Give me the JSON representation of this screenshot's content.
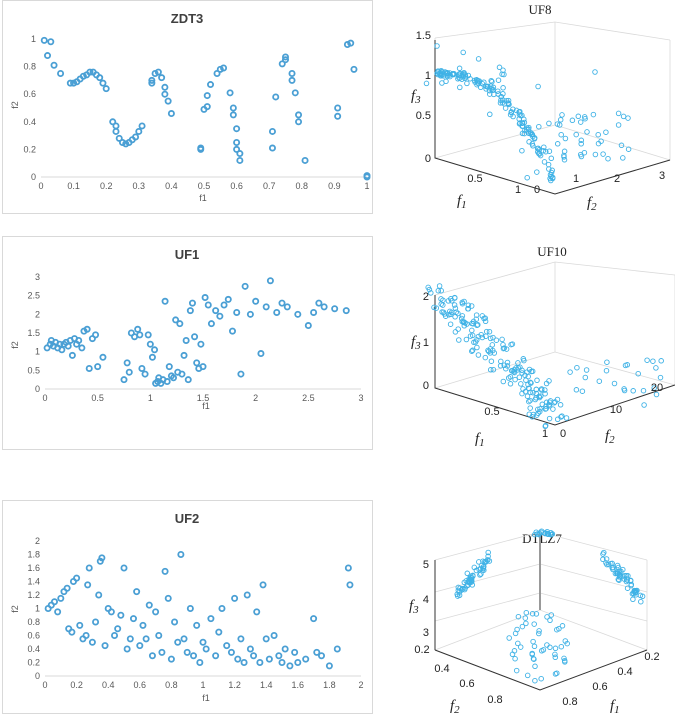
{
  "chart_data": [
    {
      "id": "zdt3",
      "type": "scatter",
      "title": "ZDT3",
      "xlabel": "f1",
      "ylabel": "f2",
      "xlim": [
        0,
        1
      ],
      "ylim": [
        0,
        1
      ],
      "xticks": [
        "0",
        "0.1",
        "0.2",
        "0.3",
        "0.4",
        "0.5",
        "0.6",
        "0.7",
        "0.8",
        "0.9",
        "1"
      ],
      "yticks": [
        "0",
        "0.2",
        "0.4",
        "0.6",
        "0.8",
        "1"
      ],
      "points": [
        [
          0.01,
          0.99
        ],
        [
          0.03,
          0.98
        ],
        [
          0.02,
          0.88
        ],
        [
          0.04,
          0.81
        ],
        [
          0.06,
          0.75
        ],
        [
          0.09,
          0.68
        ],
        [
          0.1,
          0.68
        ],
        [
          0.11,
          0.69
        ],
        [
          0.12,
          0.71
        ],
        [
          0.13,
          0.73
        ],
        [
          0.14,
          0.74
        ],
        [
          0.15,
          0.76
        ],
        [
          0.16,
          0.76
        ],
        [
          0.17,
          0.74
        ],
        [
          0.18,
          0.72
        ],
        [
          0.19,
          0.68
        ],
        [
          0.2,
          0.64
        ],
        [
          0.22,
          0.4
        ],
        [
          0.23,
          0.37
        ],
        [
          0.23,
          0.33
        ],
        [
          0.24,
          0.28
        ],
        [
          0.25,
          0.25
        ],
        [
          0.26,
          0.24
        ],
        [
          0.27,
          0.25
        ],
        [
          0.28,
          0.27
        ],
        [
          0.29,
          0.29
        ],
        [
          0.3,
          0.33
        ],
        [
          0.31,
          0.37
        ],
        [
          0.34,
          0.68
        ],
        [
          0.34,
          0.7
        ],
        [
          0.35,
          0.75
        ],
        [
          0.36,
          0.76
        ],
        [
          0.37,
          0.72
        ],
        [
          0.38,
          0.65
        ],
        [
          0.38,
          0.6
        ],
        [
          0.39,
          0.55
        ],
        [
          0.4,
          0.46
        ],
        [
          0.49,
          0.2
        ],
        [
          0.49,
          0.21
        ],
        [
          0.5,
          0.49
        ],
        [
          0.51,
          0.51
        ],
        [
          0.51,
          0.59
        ],
        [
          0.52,
          0.67
        ],
        [
          0.54,
          0.75
        ],
        [
          0.55,
          0.78
        ],
        [
          0.56,
          0.79
        ],
        [
          0.58,
          0.61
        ],
        [
          0.59,
          0.5
        ],
        [
          0.59,
          0.45
        ],
        [
          0.6,
          0.35
        ],
        [
          0.6,
          0.25
        ],
        [
          0.6,
          0.2
        ],
        [
          0.61,
          0.17
        ],
        [
          0.61,
          0.12
        ],
        [
          0.71,
          0.21
        ],
        [
          0.71,
          0.33
        ],
        [
          0.72,
          0.58
        ],
        [
          0.74,
          0.82
        ],
        [
          0.75,
          0.85
        ],
        [
          0.75,
          0.87
        ],
        [
          0.77,
          0.75
        ],
        [
          0.77,
          0.7
        ],
        [
          0.78,
          0.61
        ],
        [
          0.79,
          0.45
        ],
        [
          0.79,
          0.4
        ],
        [
          0.81,
          0.12
        ],
        [
          0.91,
          0.44
        ],
        [
          0.91,
          0.5
        ],
        [
          0.94,
          0.96
        ],
        [
          0.95,
          0.97
        ],
        [
          0.96,
          0.78
        ],
        [
          1.0,
          0.0
        ],
        [
          1.0,
          0.01
        ]
      ]
    },
    {
      "id": "uf1",
      "type": "scatter",
      "title": "UF1",
      "xlabel": "f1",
      "ylabel": "f2",
      "xlim": [
        0,
        3
      ],
      "ylim": [
        0,
        3
      ],
      "xticks": [
        "0",
        "0.5",
        "1",
        "1.5",
        "2",
        "2.5",
        "3"
      ],
      "yticks": [
        "0",
        "0.5",
        "1",
        "1.5",
        "2",
        "2.5",
        "3"
      ],
      "points": [
        [
          0.02,
          1.1
        ],
        [
          0.05,
          1.2
        ],
        [
          0.06,
          1.3
        ],
        [
          0.08,
          1.15
        ],
        [
          0.1,
          1.25
        ],
        [
          0.12,
          1.1
        ],
        [
          0.14,
          1.2
        ],
        [
          0.16,
          1.05
        ],
        [
          0.18,
          1.2
        ],
        [
          0.2,
          1.25
        ],
        [
          0.22,
          1.15
        ],
        [
          0.24,
          1.3
        ],
        [
          0.26,
          0.9
        ],
        [
          0.28,
          1.35
        ],
        [
          0.3,
          1.2
        ],
        [
          0.32,
          1.3
        ],
        [
          0.35,
          1.1
        ],
        [
          0.37,
          1.55
        ],
        [
          0.4,
          1.6
        ],
        [
          0.42,
          0.55
        ],
        [
          0.45,
          1.35
        ],
        [
          0.48,
          1.45
        ],
        [
          0.5,
          0.6
        ],
        [
          0.55,
          0.85
        ],
        [
          0.75,
          0.25
        ],
        [
          0.78,
          0.7
        ],
        [
          0.8,
          0.45
        ],
        [
          0.82,
          1.5
        ],
        [
          0.85,
          1.4
        ],
        [
          0.88,
          1.6
        ],
        [
          0.9,
          1.45
        ],
        [
          0.92,
          0.55
        ],
        [
          0.95,
          0.4
        ],
        [
          0.98,
          1.45
        ],
        [
          1.0,
          1.2
        ],
        [
          1.02,
          0.85
        ],
        [
          1.04,
          1.05
        ],
        [
          1.05,
          0.15
        ],
        [
          1.07,
          0.2
        ],
        [
          1.08,
          0.3
        ],
        [
          1.1,
          0.15
        ],
        [
          1.12,
          0.25
        ],
        [
          1.14,
          2.35
        ],
        [
          1.16,
          0.2
        ],
        [
          1.18,
          0.6
        ],
        [
          1.2,
          0.35
        ],
        [
          1.22,
          0.3
        ],
        [
          1.24,
          1.85
        ],
        [
          1.26,
          0.45
        ],
        [
          1.28,
          1.75
        ],
        [
          1.3,
          0.4
        ],
        [
          1.32,
          0.9
        ],
        [
          1.34,
          1.3
        ],
        [
          1.36,
          0.25
        ],
        [
          1.38,
          2.1
        ],
        [
          1.4,
          2.3
        ],
        [
          1.42,
          1.4
        ],
        [
          1.44,
          0.7
        ],
        [
          1.46,
          0.55
        ],
        [
          1.48,
          1.2
        ],
        [
          1.5,
          0.6
        ],
        [
          1.52,
          2.45
        ],
        [
          1.55,
          2.25
        ],
        [
          1.58,
          1.75
        ],
        [
          1.62,
          2.1
        ],
        [
          1.66,
          1.95
        ],
        [
          1.7,
          2.25
        ],
        [
          1.74,
          2.4
        ],
        [
          1.78,
          1.55
        ],
        [
          1.82,
          2.05
        ],
        [
          1.86,
          0.4
        ],
        [
          1.9,
          2.75
        ],
        [
          1.95,
          2.0
        ],
        [
          2.0,
          2.35
        ],
        [
          2.05,
          0.95
        ],
        [
          2.1,
          2.2
        ],
        [
          2.14,
          2.9
        ],
        [
          2.2,
          2.05
        ],
        [
          2.25,
          2.3
        ],
        [
          2.3,
          2.2
        ],
        [
          2.4,
          2.0
        ],
        [
          2.5,
          1.7
        ],
        [
          2.55,
          2.05
        ],
        [
          2.6,
          2.3
        ],
        [
          2.65,
          2.2
        ],
        [
          2.75,
          2.15
        ],
        [
          2.86,
          2.1
        ]
      ]
    },
    {
      "id": "uf2",
      "type": "scatter",
      "title": "UF2",
      "xlabel": "f1",
      "ylabel": "f2",
      "xlim": [
        0,
        2
      ],
      "ylim": [
        0,
        2
      ],
      "xticks": [
        "0",
        "0.2",
        "0.4",
        "0.6",
        "0.8",
        "1",
        "1.2",
        "1.4",
        "1.6",
        "1.8",
        "2"
      ],
      "yticks": [
        "0",
        "0.2",
        "0.4",
        "0.6",
        "0.8",
        "1",
        "1.2",
        "1.4",
        "1.6",
        "1.8",
        "2"
      ],
      "points": [
        [
          0.02,
          1.0
        ],
        [
          0.04,
          1.05
        ],
        [
          0.06,
          1.1
        ],
        [
          0.08,
          0.95
        ],
        [
          0.1,
          1.15
        ],
        [
          0.12,
          1.25
        ],
        [
          0.14,
          1.3
        ],
        [
          0.15,
          0.7
        ],
        [
          0.17,
          0.65
        ],
        [
          0.18,
          1.4
        ],
        [
          0.2,
          1.45
        ],
        [
          0.22,
          0.75
        ],
        [
          0.24,
          0.55
        ],
        [
          0.26,
          0.6
        ],
        [
          0.27,
          1.35
        ],
        [
          0.28,
          1.6
        ],
        [
          0.3,
          0.5
        ],
        [
          0.32,
          0.8
        ],
        [
          0.34,
          1.2
        ],
        [
          0.35,
          1.7
        ],
        [
          0.36,
          1.75
        ],
        [
          0.38,
          0.45
        ],
        [
          0.4,
          1.0
        ],
        [
          0.42,
          0.95
        ],
        [
          0.44,
          0.6
        ],
        [
          0.46,
          0.7
        ],
        [
          0.48,
          0.9
        ],
        [
          0.5,
          1.6
        ],
        [
          0.52,
          0.4
        ],
        [
          0.54,
          0.55
        ],
        [
          0.56,
          0.85
        ],
        [
          0.58,
          1.25
        ],
        [
          0.6,
          0.45
        ],
        [
          0.62,
          0.75
        ],
        [
          0.64,
          0.55
        ],
        [
          0.66,
          1.05
        ],
        [
          0.68,
          0.3
        ],
        [
          0.7,
          0.95
        ],
        [
          0.72,
          0.6
        ],
        [
          0.74,
          0.35
        ],
        [
          0.76,
          1.55
        ],
        [
          0.78,
          1.15
        ],
        [
          0.8,
          0.25
        ],
        [
          0.82,
          0.8
        ],
        [
          0.84,
          0.5
        ],
        [
          0.86,
          1.8
        ],
        [
          0.88,
          0.55
        ],
        [
          0.9,
          0.35
        ],
        [
          0.92,
          1.0
        ],
        [
          0.94,
          0.3
        ],
        [
          0.96,
          0.75
        ],
        [
          0.98,
          0.2
        ],
        [
          1.0,
          0.5
        ],
        [
          1.02,
          0.4
        ],
        [
          1.05,
          0.85
        ],
        [
          1.08,
          0.3
        ],
        [
          1.1,
          0.65
        ],
        [
          1.12,
          1.0
        ],
        [
          1.15,
          0.45
        ],
        [
          1.18,
          0.35
        ],
        [
          1.2,
          1.15
        ],
        [
          1.22,
          0.25
        ],
        [
          1.24,
          0.55
        ],
        [
          1.26,
          0.2
        ],
        [
          1.28,
          1.2
        ],
        [
          1.3,
          0.4
        ],
        [
          1.32,
          0.3
        ],
        [
          1.34,
          0.95
        ],
        [
          1.36,
          0.2
        ],
        [
          1.38,
          1.35
        ],
        [
          1.4,
          0.55
        ],
        [
          1.42,
          0.25
        ],
        [
          1.45,
          0.6
        ],
        [
          1.48,
          0.3
        ],
        [
          1.5,
          0.2
        ],
        [
          1.52,
          0.4
        ],
        [
          1.55,
          0.15
        ],
        [
          1.58,
          0.35
        ],
        [
          1.6,
          0.2
        ],
        [
          1.65,
          0.25
        ],
        [
          1.7,
          0.85
        ],
        [
          1.72,
          0.35
        ],
        [
          1.75,
          0.3
        ],
        [
          1.8,
          0.15
        ],
        [
          1.85,
          0.4
        ],
        [
          1.92,
          1.6
        ],
        [
          1.93,
          1.35
        ]
      ]
    },
    {
      "id": "uf8",
      "type": "scatter",
      "title": "UF8",
      "xlabel": "f1",
      "ylabel": "f2",
      "zlabel": "f3",
      "xticks": [
        "0.5",
        "1"
      ],
      "yticks": [
        "0",
        "1",
        "2",
        "3"
      ],
      "zticks": [
        "0",
        "0.5",
        "1",
        "1.5"
      ]
    },
    {
      "id": "uf10",
      "type": "scatter",
      "title": "UF10",
      "xlabel": "f1",
      "ylabel": "f2",
      "zlabel": "f3",
      "xticks": [
        "0.5",
        "1"
      ],
      "yticks": [
        "0",
        "10",
        "20"
      ],
      "zticks": [
        "0",
        "1",
        "2"
      ]
    },
    {
      "id": "dtlz7",
      "type": "scatter",
      "title": "DTLZ7",
      "xlabel": "f1",
      "ylabel": "f2",
      "zlabel": "f3",
      "xticks": [
        "0.8",
        "0.6",
        "0.4",
        "0.2"
      ],
      "yticks": [
        "0.2",
        "0.4",
        "0.6",
        "0.8"
      ],
      "zticks": [
        "3",
        "4",
        "5"
      ]
    }
  ]
}
